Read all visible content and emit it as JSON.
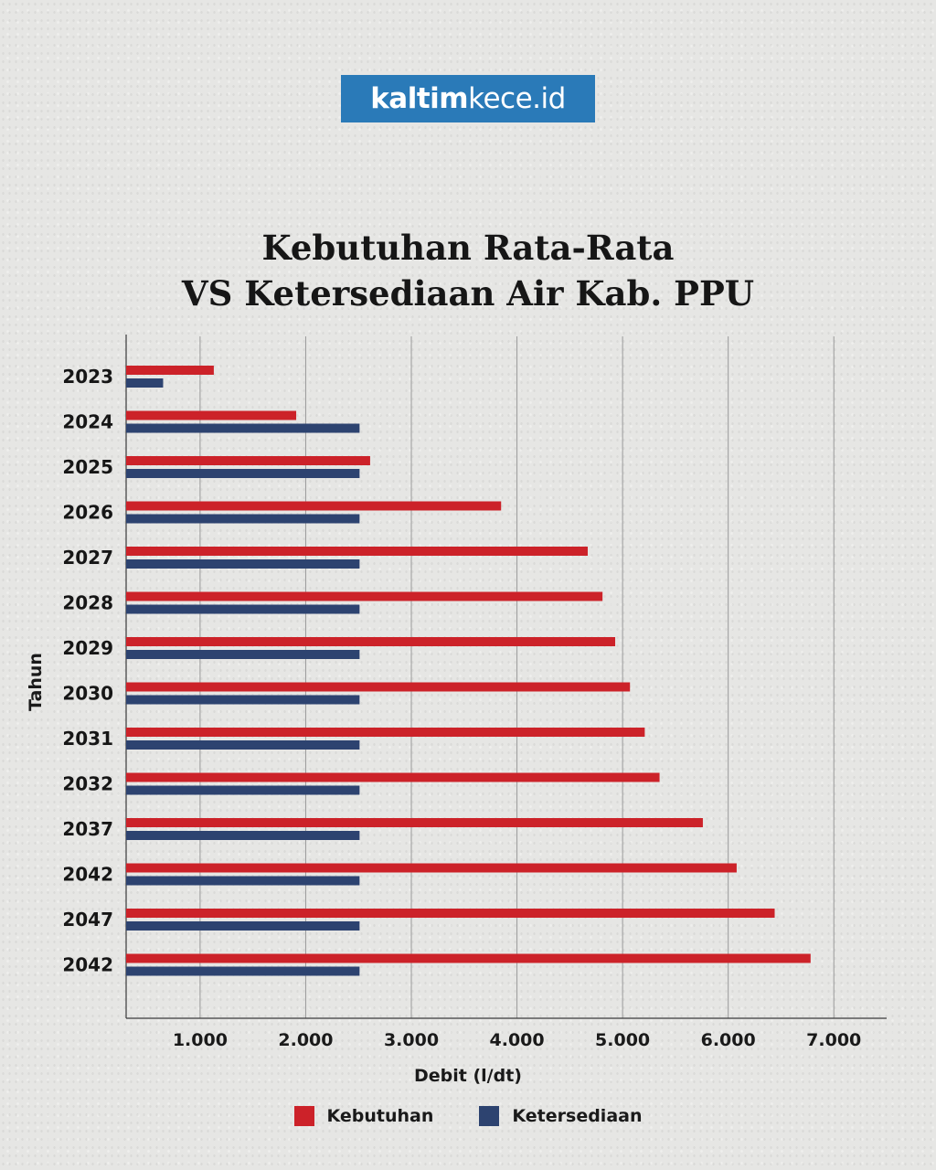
{
  "logo": {
    "bold": "kaltim",
    "light": "kece.id"
  },
  "colors": {
    "kebutuhan": "#cc2229",
    "ketersediaan": "#2d4370",
    "grid": "#9a9a9a",
    "axis": "#3a3a3a",
    "logo_bg": "#2a7ab8"
  },
  "legend": {
    "kebutuhan": "Kebutuhan",
    "ketersediaan": "Ketersediaan"
  },
  "chart_data": {
    "type": "bar",
    "orientation": "horizontal",
    "title": [
      "Kebutuhan Rata-Rata",
      "VS Ketersediaan Air Kab. PPU"
    ],
    "xlabel": "Debit (l/dt)",
    "ylabel": "Tahun",
    "xlim": [
      300,
      7500
    ],
    "xticks": [
      1000,
      2000,
      3000,
      4000,
      5000,
      6000,
      7000
    ],
    "xtick_labels": [
      "1.000",
      "2.000",
      "3.000",
      "4.000",
      "5.000",
      "6.000",
      "7.000"
    ],
    "grid": true,
    "legend_position": "bottom-center",
    "categories": [
      "2023",
      "2024",
      "2025",
      "2026",
      "2027",
      "2028",
      "2029",
      "2030",
      "2031",
      "2032",
      "2037",
      "2042",
      "2047",
      "2042"
    ],
    "series": [
      {
        "name": "Kebutuhan",
        "values": [
          1130,
          1910,
          2610,
          3850,
          4670,
          4810,
          4930,
          5070,
          5210,
          5350,
          5760,
          6080,
          6440,
          6780
        ]
      },
      {
        "name": "Ketersediaan",
        "values": [
          650,
          2510,
          2510,
          2510,
          2510,
          2510,
          2510,
          2510,
          2510,
          2510,
          2510,
          2510,
          2510,
          2510
        ]
      }
    ]
  }
}
